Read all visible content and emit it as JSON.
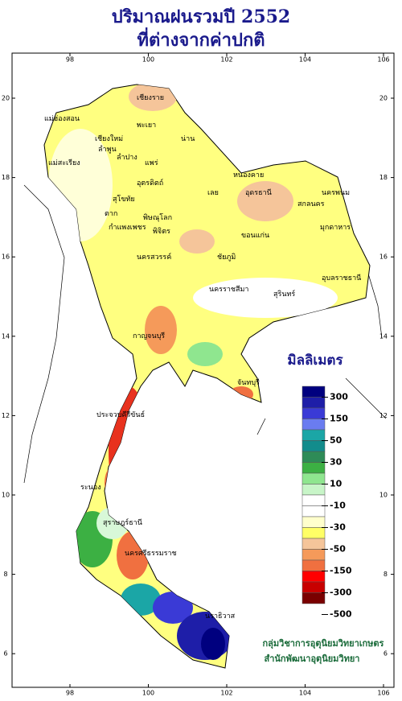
{
  "title": [
    "ปริมาณฝนรวมปี  2552",
    "ที่ต่างจากค่าปกติ"
  ],
  "map": {
    "lon_ticks": [
      98,
      100,
      102,
      104,
      106
    ],
    "lat_ticks": [
      6,
      8,
      10,
      12,
      14,
      16,
      18,
      20
    ]
  },
  "provinces": [
    "เชียงราย",
    "แม่ฮ่องสอน",
    "เชียงใหม่",
    "พะเยา",
    "น่าน",
    "ลำพูน",
    "ลำปาง",
    "แพร่",
    "แม่สะเรียง",
    "อุตรดิตถ์",
    "ตาก",
    "สุโขทัย",
    "พิษณุโลก",
    "กำแพงเพชร",
    "พิจิตร",
    "นครสวรรค์",
    "หนองคาย",
    "อุดรธานี",
    "เลย",
    "สกลนคร",
    "นครพนม",
    "มุกดาหาร",
    "ขอนแก่น",
    "ชัยภูมิ",
    "นครราชสีมา",
    "สุรินทร์",
    "อุบลราชธานี",
    "กาญจนบุรี",
    "จันทบุรี",
    "ประจวบคีรีขันธ์",
    "ระนอง",
    "สุราษฎร์ธานี",
    "นครศรีธรรมราช",
    "นราธิวาส"
  ],
  "legend": {
    "title": "มิลลิเมตร",
    "colors": [
      "#00007f",
      "#1e1ea8",
      "#3a3ad6",
      "#6a7cf0",
      "#1ba6a6",
      "#128c8c",
      "#2e8b57",
      "#3cb043",
      "#8fe68f",
      "#c8f5c8",
      "#ffffff",
      "#ffffff",
      "#ffffcc",
      "#ffff66",
      "#f5c59a",
      "#f59a5a",
      "#f07040",
      "#ff0000",
      "#c80000",
      "#7a0000"
    ],
    "labels": [
      300,
      150,
      50,
      30,
      10,
      -10,
      -30,
      -50,
      -150,
      -300,
      -500
    ]
  },
  "credits": [
    "กลุ่มวิชาการอุตุนิยมวิทยาเกษตร",
    "สำนักพัฒนาอุตุนิยมวิทยา"
  ]
}
